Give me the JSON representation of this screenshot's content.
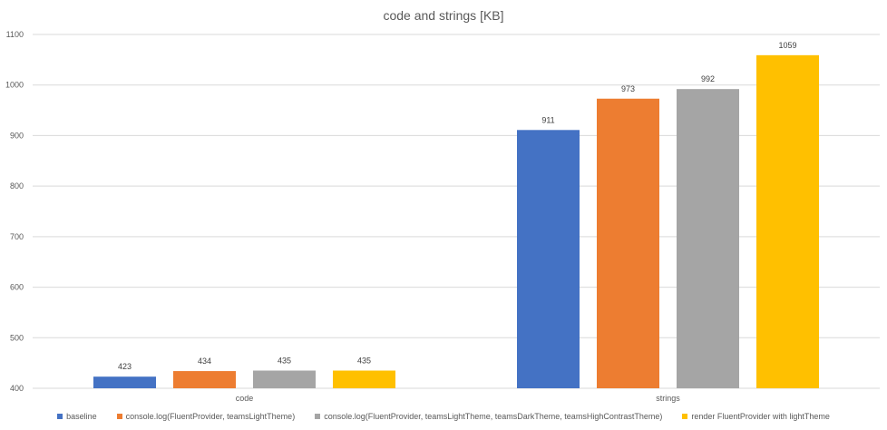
{
  "chart_data": {
    "type": "bar",
    "title": "code and strings [KB]",
    "categories": [
      "code",
      "strings"
    ],
    "ylim": [
      400,
      1100
    ],
    "yticks": [
      400,
      500,
      600,
      700,
      800,
      900,
      1000,
      1100
    ],
    "grid": true,
    "legend_position": "bottom",
    "series": [
      {
        "name": "baseline",
        "color": "#4472C4",
        "values": [
          423,
          911
        ]
      },
      {
        "name": "console.log(FluentProvider, teamsLightTheme)",
        "color": "#ED7D31",
        "values": [
          434,
          973
        ]
      },
      {
        "name": "console.log(FluentProvider, teamsLightTheme, teamsDarkTheme, teamsHighContrastTheme)",
        "color": "#A5A5A5",
        "values": [
          435,
          992
        ]
      },
      {
        "name": "render FluentProvider with lightTheme",
        "color": "#FFC000",
        "values": [
          435,
          1059
        ]
      }
    ]
  }
}
